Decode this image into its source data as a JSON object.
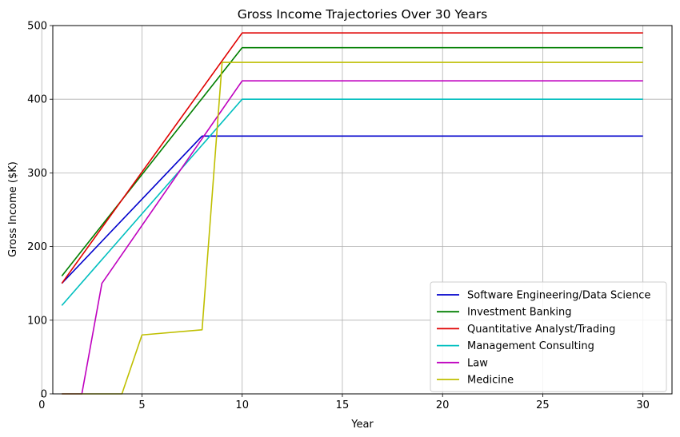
{
  "chart_data": {
    "type": "line",
    "title": "Gross Income Trajectories Over 30 Years",
    "xlabel": "Year",
    "ylabel": "Gross Income ($K)",
    "xlim": [
      0.55,
      31.45
    ],
    "ylim": [
      0,
      500
    ],
    "xticks": [
      0,
      5,
      10,
      15,
      20,
      25,
      30
    ],
    "yticks": [
      0,
      100,
      200,
      300,
      400,
      500
    ],
    "grid": true,
    "legend_position": "lower right",
    "series": [
      {
        "name": "Software Engineering/Data Science",
        "color": "#0000cc",
        "points": [
          [
            1,
            150
          ],
          [
            8,
            350
          ],
          [
            9,
            350
          ],
          [
            10,
            350
          ],
          [
            30,
            350
          ]
        ]
      },
      {
        "name": "Investment Banking",
        "color": "#007f00",
        "points": [
          [
            1,
            160
          ],
          [
            10,
            470
          ],
          [
            30,
            470
          ]
        ]
      },
      {
        "name": "Quantitative Analyst/Trading",
        "color": "#e00000",
        "points": [
          [
            1,
            150
          ],
          [
            10,
            490
          ],
          [
            30,
            490
          ]
        ]
      },
      {
        "name": "Management Consulting",
        "color": "#00bfbf",
        "points": [
          [
            1,
            120
          ],
          [
            10,
            400
          ],
          [
            30,
            400
          ]
        ]
      },
      {
        "name": "Law",
        "color": "#bf00bf",
        "points": [
          [
            1,
            0
          ],
          [
            2,
            0
          ],
          [
            3,
            150
          ],
          [
            10,
            425
          ],
          [
            30,
            425
          ]
        ]
      },
      {
        "name": "Medicine",
        "color": "#bfbf00",
        "points": [
          [
            1,
            0
          ],
          [
            4,
            0
          ],
          [
            5,
            80
          ],
          [
            8,
            87
          ],
          [
            9,
            450
          ],
          [
            10,
            450
          ],
          [
            30,
            450
          ]
        ]
      }
    ]
  }
}
